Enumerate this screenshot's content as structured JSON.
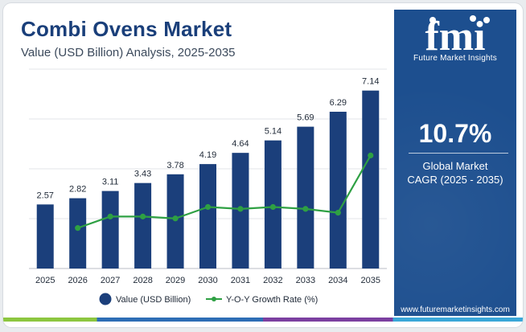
{
  "header": {
    "title": "Combi Ovens Market",
    "subtitle": "Value (USD Billion) Analysis, 2025-2035"
  },
  "sidebar": {
    "logo_text": "fmi",
    "logo_caption": "Future Market Insights",
    "cagr_value": "10.7%",
    "cagr_label_line1": "Global Market",
    "cagr_label_line2": "CAGR (2025 - 2035)",
    "website": "www.futuremarketinsights.com"
  },
  "colors": {
    "bar": "#1b3f7b",
    "line": "#2ea043",
    "sidebar": "#1d4f8f",
    "title": "#1a3f7a"
  },
  "chart_data": {
    "type": "bar",
    "title": "Combi Ovens Market",
    "subtitle": "Value (USD Billion) Analysis, 2025-2035",
    "categories": [
      "2025",
      "2026",
      "2027",
      "2028",
      "2029",
      "2030",
      "2031",
      "2032",
      "2033",
      "2034",
      "2035"
    ],
    "series": [
      {
        "name": "Value (USD Billion)",
        "type": "bar",
        "values": [
          2.57,
          2.82,
          3.11,
          3.43,
          3.78,
          4.19,
          4.64,
          5.14,
          5.69,
          6.29,
          7.14
        ],
        "labels": [
          "2.57",
          "2.82",
          "3.11",
          "3.43",
          "3.78",
          "4.19",
          "4.64",
          "5.14",
          "5.69",
          "6.29",
          "7.14"
        ]
      },
      {
        "name": "Y-O-Y Growth Rate (%)",
        "type": "line",
        "values": [
          null,
          9.7,
          10.3,
          10.3,
          10.2,
          10.8,
          10.7,
          10.8,
          10.7,
          10.5,
          13.5
        ]
      }
    ],
    "ylim": [
      0,
      8
    ],
    "grid": true,
    "legend": "bottom"
  }
}
